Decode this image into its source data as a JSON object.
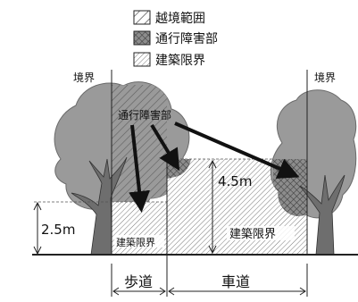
{
  "legend": {
    "items": [
      {
        "label": "越境範囲",
        "pattern": "wide-hatch"
      },
      {
        "label": "通行障害部",
        "pattern": "cross-hatch"
      },
      {
        "label": "建築限界",
        "pattern": "fine-hatch"
      }
    ]
  },
  "labels": {
    "boundary_left": "境界",
    "boundary_right": "境界",
    "obstruction": "通行障害部",
    "clearance_sidewalk": "建築限界",
    "clearance_road": "建築限界",
    "height_road": "4.5m",
    "height_sidewalk": "2.5m",
    "sidewalk": "歩道",
    "roadway": "車道"
  },
  "colors": {
    "foliage": "#9a9a9a",
    "trunk": "#6e6e6e",
    "arrow": "#111111",
    "ground": "#222222"
  }
}
